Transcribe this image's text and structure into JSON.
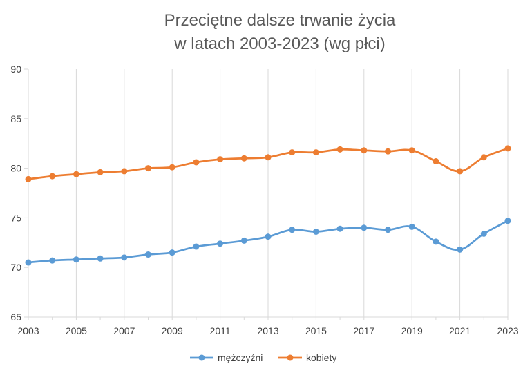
{
  "chart_data": {
    "type": "line",
    "title_line1": "Przeciętne dalsze trwanie życia",
    "title_line2": "w latach 2003-2023 (wg płci)",
    "xlabel": "",
    "ylabel": "",
    "x": [
      2003,
      2004,
      2005,
      2006,
      2007,
      2008,
      2009,
      2010,
      2011,
      2012,
      2013,
      2014,
      2015,
      2016,
      2017,
      2018,
      2019,
      2020,
      2021,
      2022,
      2023
    ],
    "x_tick_labels": [
      "2003",
      "2005",
      "2007",
      "2009",
      "2011",
      "2013",
      "2015",
      "2017",
      "2019",
      "2021",
      "2023"
    ],
    "y_tick_labels": [
      "90",
      "85",
      "80",
      "75",
      "70",
      "65"
    ],
    "ylim": [
      65,
      90
    ],
    "grid": "vertical",
    "legend_position": "bottom",
    "series": [
      {
        "name": "mężczyźni",
        "color": "#5B9BD5",
        "values": [
          70.5,
          70.7,
          70.8,
          70.9,
          71.0,
          71.3,
          71.5,
          72.1,
          72.4,
          72.7,
          73.1,
          73.8,
          73.6,
          73.9,
          74.0,
          73.8,
          74.1,
          72.6,
          71.8,
          73.4,
          74.7
        ]
      },
      {
        "name": "kobiety",
        "color": "#ED7D31",
        "values": [
          78.9,
          79.2,
          79.4,
          79.6,
          79.7,
          80.0,
          80.1,
          80.6,
          80.9,
          81.0,
          81.1,
          81.6,
          81.6,
          81.9,
          81.8,
          81.7,
          81.8,
          80.7,
          79.7,
          81.1,
          82.0
        ]
      }
    ]
  }
}
